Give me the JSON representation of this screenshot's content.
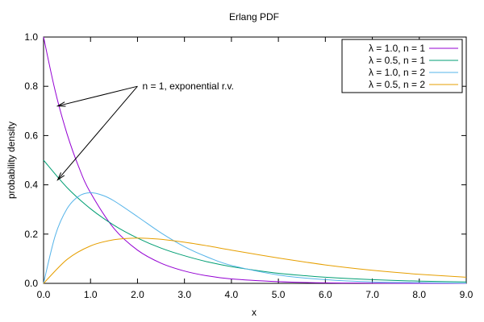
{
  "chart_data": {
    "type": "line",
    "title": "Erlang PDF",
    "xlabel": "x",
    "ylabel": "probability density",
    "xlim": [
      0,
      9
    ],
    "ylim": [
      0,
      1
    ],
    "x_ticks": [
      "0.0",
      "1.0",
      "2.0",
      "3.0",
      "4.0",
      "5.0",
      "6.0",
      "7.0",
      "8.0",
      "9.0"
    ],
    "y_ticks": [
      "0.0",
      "0.2",
      "0.4",
      "0.6",
      "0.8",
      "1.0"
    ],
    "grid": false,
    "legend_position": "top-right",
    "series": [
      {
        "name": "λ = 1.0, n = 1",
        "color": "#9400d3",
        "x": [
          0,
          0.25,
          0.5,
          0.75,
          1,
          1.5,
          2,
          2.5,
          3,
          3.5,
          4,
          5,
          6,
          7,
          8,
          9
        ],
        "y": [
          1.0,
          0.779,
          0.607,
          0.472,
          0.368,
          0.223,
          0.135,
          0.082,
          0.05,
          0.03,
          0.018,
          0.007,
          0.002,
          0.001,
          0.0,
          0.0
        ]
      },
      {
        "name": "λ = 0.5, n = 1",
        "color": "#009e73",
        "x": [
          0,
          0.5,
          1,
          1.5,
          2,
          2.5,
          3,
          3.5,
          4,
          5,
          6,
          7,
          8,
          9
        ],
        "y": [
          0.5,
          0.389,
          0.303,
          0.236,
          0.184,
          0.143,
          0.112,
          0.087,
          0.068,
          0.041,
          0.025,
          0.015,
          0.009,
          0.006
        ]
      },
      {
        "name": "λ = 1.0, n = 2",
        "color": "#56b4e9",
        "x": [
          0,
          0.25,
          0.5,
          0.75,
          1,
          1.25,
          1.5,
          2,
          2.5,
          3,
          3.5,
          4,
          5,
          6,
          7,
          8,
          9
        ],
        "y": [
          0.0,
          0.195,
          0.303,
          0.354,
          0.368,
          0.358,
          0.335,
          0.271,
          0.205,
          0.149,
          0.106,
          0.073,
          0.034,
          0.015,
          0.006,
          0.003,
          0.001
        ]
      },
      {
        "name": "λ = 0.5, n = 2",
        "color": "#e69f00",
        "x": [
          0,
          0.5,
          1,
          1.5,
          2,
          2.5,
          3,
          3.5,
          4,
          5,
          6,
          7,
          8,
          9
        ],
        "y": [
          0.0,
          0.097,
          0.152,
          0.177,
          0.184,
          0.179,
          0.167,
          0.152,
          0.135,
          0.103,
          0.075,
          0.053,
          0.037,
          0.025
        ]
      }
    ],
    "annotations": [
      {
        "text": "n = 1, exponential r.v.",
        "target_x": 2.0,
        "target_y": 0.8,
        "arrows_to": [
          {
            "x": 0.3,
            "y": 0.72
          },
          {
            "x": 0.3,
            "y": 0.42
          }
        ]
      }
    ]
  }
}
